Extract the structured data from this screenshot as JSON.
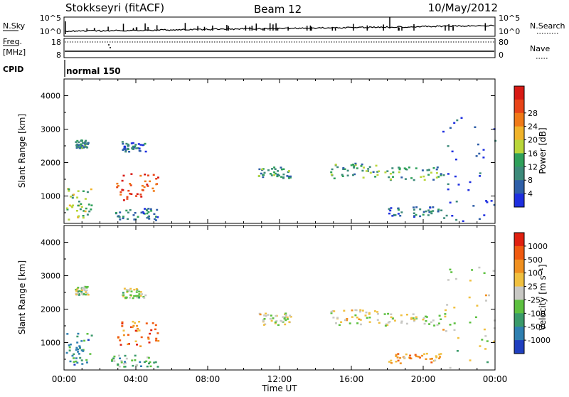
{
  "header": {
    "station": "Stokkseyri (fitACF)",
    "beam": "Beam 12",
    "date": "10/May/2012"
  },
  "strip_labels": {
    "nsky": "N.Sky",
    "nsearch": "N.Search",
    "freq_top": "Freq.",
    "freq_unit": "[MHz]",
    "nave": "Nave",
    "cpid": "CPID",
    "cpid_value": "normal 150",
    "nsky_ticks": [
      "10^5",
      "10^0"
    ],
    "nsearch_ticks": [
      "10^5",
      "10^0"
    ],
    "freq_ticks": [
      "18",
      "8"
    ],
    "nave_ticks": [
      "80",
      "0"
    ]
  },
  "colors": {
    "power_scale": [
      "#1e2fe0",
      "#2f5fa8",
      "#3d8a7a",
      "#2fa05a",
      "#b9d63a",
      "#f0b32a",
      "#f07a18",
      "#e84418",
      "#d81a14"
    ],
    "velocity_scale": [
      "#1f3fbf",
      "#2f7fb0",
      "#3a9a6a",
      "#5dc040",
      "#c8c8c4",
      "#f0c040",
      "#f09020",
      "#f05a10",
      "#e02010"
    ]
  },
  "chart_data": [
    {
      "type": "heatmap",
      "quantity": "Power",
      "xlabel": "Time UT",
      "ylabel": "Slant Range [km]",
      "xlim_hours": [
        0,
        24
      ],
      "ylim": [
        180,
        4500
      ],
      "x_tick_labels": [
        "00:00",
        "04:00",
        "08:00",
        "12:00",
        "16:00",
        "20:00",
        "00:00"
      ],
      "y_ticks": [
        1000,
        2000,
        3000,
        4000
      ],
      "colorbar": {
        "label": "Power [dB]",
        "range": [
          0,
          32
        ],
        "tick_labels": [
          "4",
          "8",
          "12",
          "16",
          "20",
          "24",
          "28"
        ]
      },
      "regions": [
        {
          "t": [
            0.1,
            1.5
          ],
          "r": [
            300,
            1300
          ],
          "level": 0.45
        },
        {
          "t": [
            0.6,
            1.3
          ],
          "r": [
            2450,
            2700
          ],
          "level": 0.3
        },
        {
          "t": [
            2.9,
            5.2
          ],
          "r": [
            900,
            1700
          ],
          "level": 0.85
        },
        {
          "t": [
            3.2,
            4.5
          ],
          "r": [
            2350,
            2650
          ],
          "level": 0.2
        },
        {
          "t": [
            2.6,
            5.2
          ],
          "r": [
            300,
            650
          ],
          "level": 0.25
        },
        {
          "t": [
            10.8,
            12.6
          ],
          "r": [
            1550,
            1900
          ],
          "level": 0.3
        },
        {
          "t": [
            14.8,
            17.5
          ],
          "r": [
            1550,
            2000
          ],
          "level": 0.35
        },
        {
          "t": [
            17.8,
            21.0
          ],
          "r": [
            1500,
            1900
          ],
          "level": 0.35
        },
        {
          "t": [
            18.0,
            21.0
          ],
          "r": [
            400,
            700
          ],
          "level": 0.2
        },
        {
          "t": [
            21.0,
            24.0
          ],
          "r": [
            250,
            3500
          ],
          "level": 0.15
        }
      ]
    },
    {
      "type": "heatmap",
      "quantity": "Velocity",
      "xlabel": "Time UT",
      "ylabel": "Slant Range [km]",
      "xlim_hours": [
        0,
        24
      ],
      "ylim": [
        180,
        4500
      ],
      "x_tick_labels": [
        "00:00",
        "04:00",
        "08:00",
        "12:00",
        "16:00",
        "20:00",
        "00:00"
      ],
      "y_ticks": [
        1000,
        2000,
        3000,
        4000
      ],
      "colorbar": {
        "label": "Velocity [m s⁻¹]",
        "tick_labels": [
          "1000",
          "500",
          "100",
          "25",
          "-25",
          "-100",
          "-500",
          "-1000"
        ]
      },
      "regions": [
        {
          "t": [
            0.1,
            1.5
          ],
          "r": [
            300,
            1300
          ],
          "level": 0.25
        },
        {
          "t": [
            0.6,
            1.3
          ],
          "r": [
            2450,
            2700
          ],
          "level": 0.45
        },
        {
          "t": [
            2.9,
            5.2
          ],
          "r": [
            900,
            1700
          ],
          "level": 0.78
        },
        {
          "t": [
            3.2,
            4.5
          ],
          "r": [
            2350,
            2650
          ],
          "level": 0.45
        },
        {
          "t": [
            2.6,
            5.2
          ],
          "r": [
            300,
            650
          ],
          "level": 0.35
        },
        {
          "t": [
            10.8,
            12.6
          ],
          "r": [
            1550,
            1900
          ],
          "level": 0.5
        },
        {
          "t": [
            14.8,
            17.5
          ],
          "r": [
            1550,
            2000
          ],
          "level": 0.55
        },
        {
          "t": [
            17.8,
            21.0
          ],
          "r": [
            1500,
            1900
          ],
          "level": 0.5
        },
        {
          "t": [
            18.0,
            21.0
          ],
          "r": [
            400,
            700
          ],
          "level": 0.7
        },
        {
          "t": [
            21.0,
            24.0
          ],
          "r": [
            250,
            3500
          ],
          "level": 0.5
        }
      ]
    }
  ]
}
